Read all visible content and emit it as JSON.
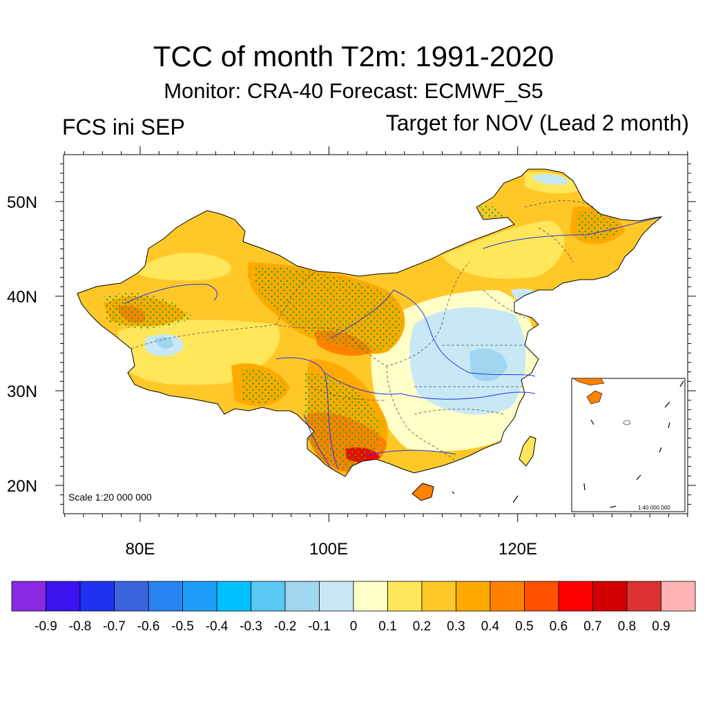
{
  "title": "TCC of month T2m: 1991-2020",
  "subtitle": "Monitor: CRA-40   Forecast: ECMWF_S5",
  "left_string": "FCS ini SEP",
  "right_string": "Target for NOV (Lead 2 month)",
  "lat_labels": [
    "50N",
    "40N",
    "30N",
    "20N"
  ],
  "lon_labels": [
    "80E",
    "100E",
    "120E"
  ],
  "scale_main": "Scale 1:20 000 000",
  "scale_inset": "1:40 000 000",
  "colorbar": {
    "colors": [
      "#8a2be2",
      "#3c14f0",
      "#1e32f0",
      "#3c64dc",
      "#2882f0",
      "#1ea0fa",
      "#00c0ff",
      "#5ac8f5",
      "#a0d6f0",
      "#c8e8f5",
      "#ffffc8",
      "#ffe65a",
      "#ffc828",
      "#ffaa00",
      "#ff8200",
      "#ff5000",
      "#ff0000",
      "#d20000",
      "#dc3232",
      "#ffb4b4"
    ],
    "labels": [
      "-0.9",
      "-0.8",
      "-0.7",
      "-0.6",
      "-0.5",
      "-0.4",
      "-0.3",
      "-0.2",
      "-0.1",
      "0",
      "0.1",
      "0.2",
      "0.3",
      "0.4",
      "0.5",
      "0.6",
      "0.7",
      "0.8",
      "0.9"
    ]
  },
  "colors": {
    "land_base": "#ffc828",
    "stipple": "#22aa22",
    "rivers": "#1e32f0"
  }
}
